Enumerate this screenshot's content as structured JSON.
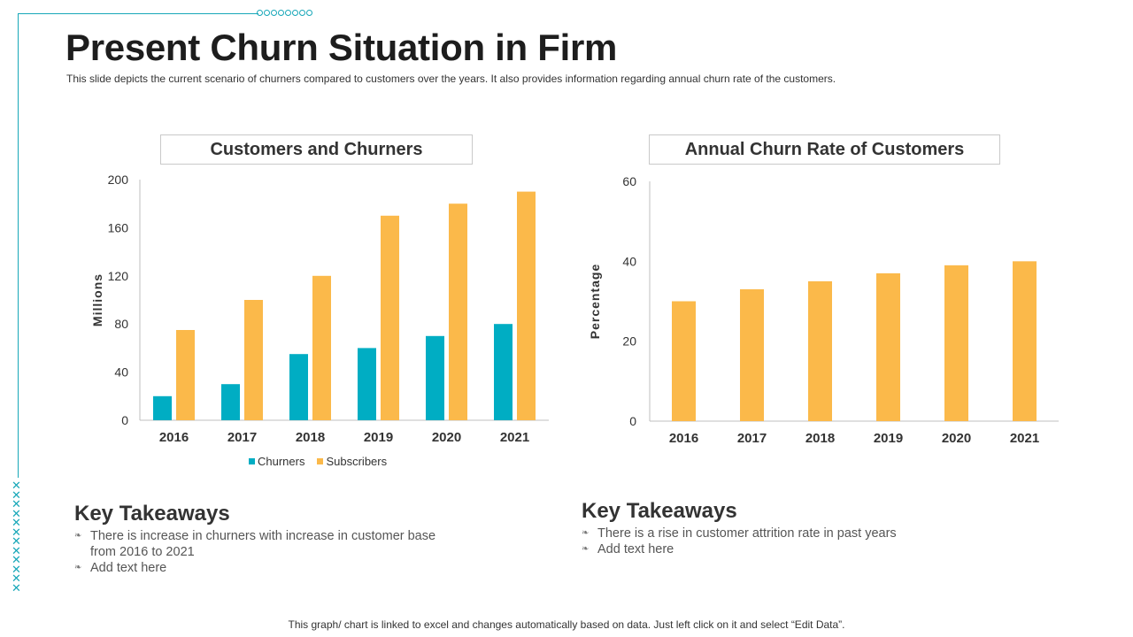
{
  "page": {
    "title": "Present Churn Situation in Firm",
    "subtitle": "This slide depicts the current scenario of churners compared to customers over the years. It also provides  information  regarding  annual churn rate of the customers.",
    "footer": "This graph/ chart is linked to excel and changes automatically based on data. Just left click on it and select “Edit Data”."
  },
  "theme": {
    "accent": "#17a7b8",
    "churners_color": "#00adc3",
    "subscribers_color": "#fbb94a"
  },
  "chart_data": [
    {
      "type": "bar",
      "title": "Customers and Churners",
      "ylabel": "Millions",
      "xlabel": "",
      "categories": [
        "2016",
        "2017",
        "2018",
        "2019",
        "2020",
        "2021"
      ],
      "series": [
        {
          "name": "Churners",
          "values": [
            20,
            30,
            55,
            60,
            70,
            80
          ],
          "color": "#00adc3"
        },
        {
          "name": "Subscribers",
          "values": [
            75,
            100,
            120,
            170,
            180,
            190
          ],
          "color": "#fbb94a"
        }
      ],
      "ylim": [
        0,
        200
      ],
      "yticks": [
        0,
        40,
        80,
        120,
        160,
        200
      ],
      "grid": false,
      "legend": "bottom"
    },
    {
      "type": "bar",
      "title": "Annual Churn Rate of Customers",
      "ylabel": "Percentage",
      "xlabel": "",
      "categories": [
        "2016",
        "2017",
        "2018",
        "2019",
        "2020",
        "2021"
      ],
      "series": [
        {
          "values": [
            30,
            33,
            35,
            37,
            39,
            40
          ],
          "color": "#fbb94a"
        }
      ],
      "ylim": [
        0,
        60
      ],
      "yticks": [
        0,
        20,
        40,
        60
      ],
      "grid": false,
      "legend": "none"
    }
  ],
  "takeaways": [
    {
      "heading": "Key Takeaways",
      "items": [
        "There is increase in churners with increase in customer base",
        "from 2016 to 2021",
        "Add text here"
      ]
    },
    {
      "heading": "Key Takeaways",
      "items": [
        "There is a rise in customer attrition rate in past years",
        "Add text here"
      ]
    }
  ],
  "bullet_glyph": "❧"
}
